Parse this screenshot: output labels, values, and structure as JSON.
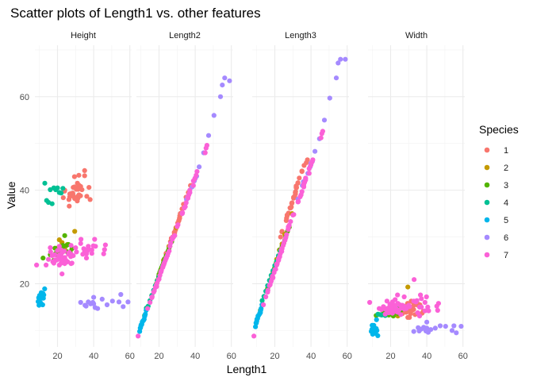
{
  "chart_data": {
    "type": "scatter",
    "title": "Scatter plots of Length1 vs. other features",
    "xlabel": "Length1",
    "ylabel": "Value",
    "panels": [
      "Height",
      "Length2",
      "Length3",
      "Width"
    ],
    "xlim": [
      7.5,
      61
    ],
    "ylim": [
      6.5,
      71
    ],
    "x_ticks": [
      20,
      40,
      60
    ],
    "y_ticks": [
      20,
      40,
      60
    ],
    "legend_title": "Species",
    "series": [
      {
        "name": "1",
        "color": "#F8766D",
        "length1": [
          23.2,
          24.0,
          23.9,
          26.3,
          26.5,
          26.8,
          26.8,
          27.6,
          27.6,
          28.5,
          28.4,
          28.7,
          29.1,
          29.5,
          29.4,
          29.4,
          30.4,
          30.4,
          30.9,
          31.0,
          31.3,
          31.4,
          31.5,
          31.8,
          31.9,
          31.8,
          32.0,
          32.7,
          32.8,
          33.5,
          35.0,
          35.0,
          36.2,
          37.4,
          38.0
        ],
        "height": [
          38.4,
          40.0,
          39.8,
          38.0,
          36.6,
          39.2,
          38.6,
          39.3,
          38.8,
          39.2,
          39.4,
          40.6,
          38.6,
          38.2,
          42.9,
          40.7,
          40.2,
          40.3,
          37.7,
          41.5,
          38.3,
          40.2,
          38.8,
          41.1,
          39.0,
          43.2,
          38.8,
          38.8,
          40.8,
          40.1,
          44.2,
          43.1,
          38.7,
          40.6,
          38.0
        ],
        "length2": [
          25.4,
          26.3,
          26.5,
          29.0,
          29.0,
          29.7,
          29.7,
          30.0,
          30.0,
          30.7,
          31.0,
          31.0,
          31.5,
          32.0,
          32.0,
          32.0,
          33.0,
          33.0,
          33.5,
          33.5,
          34.0,
          34.0,
          34.5,
          35.0,
          35.0,
          35.0,
          35.0,
          36.0,
          36.0,
          37.0,
          38.5,
          38.5,
          39.5,
          41.0,
          41.0
        ],
        "length3": [
          30.0,
          31.2,
          31.1,
          33.5,
          34.0,
          34.7,
          34.5,
          35.0,
          35.1,
          36.2,
          36.2,
          36.2,
          36.4,
          37.3,
          37.2,
          37.2,
          38.3,
          38.5,
          38.6,
          38.7,
          39.5,
          39.2,
          39.7,
          40.6,
          40.5,
          40.9,
          40.6,
          41.5,
          41.6,
          42.6,
          44.1,
          44.0,
          45.3,
          45.9,
          46.5
        ],
        "width": [
          14.4,
          15.1,
          14.8,
          14.4,
          13.6,
          14.8,
          14.4,
          15.2,
          14.3,
          13.9,
          14.3,
          14.9,
          14.3,
          12.8,
          15.8,
          14.7,
          12.8,
          14.3,
          14.2,
          13.6,
          14.5,
          16.3,
          15.0,
          14.7,
          14.3,
          16.2,
          15.0,
          14.5,
          15.4,
          13.4,
          15.7,
          15.4,
          15.5,
          13.7,
          14.1
        ]
      },
      {
        "name": "2",
        "color": "#C49A00",
        "length1": [
          20.0,
          20.8,
          21.0,
          22.5,
          24.0,
          25.5,
          29.5
        ],
        "height": [
          26.8,
          27.6,
          29.4,
          28.8,
          27.4,
          28.4,
          31.2
        ],
        "length2": [
          22.0,
          22.6,
          23.0,
          25.0,
          26.0,
          28.0,
          32.0
        ],
        "length3": [
          23.5,
          24.5,
          25.2,
          27.2,
          28.5,
          30.6,
          35.0
        ],
        "width": [
          14.2,
          14.0,
          14.1,
          14.3,
          13.1,
          14.2,
          19.3
        ]
      },
      {
        "name": "3",
        "color": "#53B400",
        "length1": [
          12.0,
          16.0,
          18.0,
          18.6,
          19.0,
          19.8,
          20.0,
          20.5,
          20.9,
          21.5,
          22.0,
          22.5,
          23.0,
          23.0,
          24.0,
          25.0,
          25.5,
          26.0,
          27.0,
          28.0
        ],
        "height": [
          25.5,
          26.2,
          25.0,
          27.6,
          26.5,
          27.6,
          26.1,
          26.0,
          25.9,
          27.0,
          26.8,
          25.5,
          27.5,
          28.2,
          30.3,
          28.2,
          26.8,
          28.4,
          26.8,
          27.5
        ],
        "length2": [
          13.2,
          17.5,
          19.5,
          20.0,
          20.7,
          21.5,
          22.0,
          22.5,
          23.0,
          23.5,
          24.0,
          24.5,
          25.0,
          25.3,
          26.0,
          27.0,
          27.5,
          28.0,
          29.0,
          30.0
        ],
        "length3": [
          14.3,
          19.0,
          21.0,
          21.4,
          22.5,
          23.2,
          23.5,
          24.0,
          24.5,
          25.0,
          25.8,
          26.0,
          26.9,
          27.3,
          28.0,
          28.7,
          29.3,
          30.0,
          31.2,
          32.1
        ],
        "width": [
          13.2,
          14.1,
          13.8,
          13.8,
          13.3,
          14.8,
          13.8,
          13.9,
          14.2,
          13.1,
          13.8,
          14.4,
          14.9,
          14.4,
          13.6,
          14.2,
          14.6,
          14.5,
          14.6,
          15.0
        ]
      },
      {
        "name": "4",
        "color": "#00C094",
        "length1": [
          13.0,
          14.0,
          15.0,
          16.0,
          17.0,
          18.0,
          19.0,
          20.0,
          21.0,
          22.0,
          23.0
        ],
        "height": [
          41.5,
          37.8,
          37.4,
          40.1,
          37.1,
          40.5,
          40.1,
          40.5,
          39.5,
          39.4,
          40.4
        ],
        "length2": [
          14.8,
          15.2,
          16.4,
          17.5,
          18.6,
          19.6,
          20.6,
          21.5,
          22.5,
          23.7,
          24.6
        ],
        "length3": [
          16.4,
          17.3,
          18.4,
          19.6,
          20.7,
          21.8,
          22.8,
          23.9,
          24.8,
          26.0,
          27.0
        ],
        "width": [
          13.5,
          13.4,
          13.3,
          14.7,
          13.2,
          14.6,
          14.3,
          14.9,
          13.8,
          14.7,
          15.2
        ]
      },
      {
        "name": "5",
        "color": "#00B6EB",
        "length1": [
          9.3,
          9.6,
          9.8,
          10.0,
          10.1,
          10.5,
          10.7,
          11.0,
          11.5,
          11.8,
          12.0,
          12.2,
          12.4,
          12.9
        ],
        "height": [
          16.2,
          17.0,
          15.4,
          16.8,
          17.5,
          16.8,
          15.9,
          18.1,
          16.9,
          15.5,
          17.9,
          16.9,
          17.6,
          18.9
        ],
        "length2": [
          9.8,
          10.5,
          10.6,
          11.0,
          11.2,
          11.3,
          11.8,
          12.0,
          12.2,
          12.4,
          13.0,
          13.2,
          13.5,
          14.3
        ],
        "length3": [
          10.8,
          11.6,
          11.6,
          12.0,
          12.4,
          12.6,
          13.1,
          13.2,
          13.5,
          13.8,
          13.8,
          14.3,
          14.7,
          15.5
        ],
        "width": [
          9.8,
          10.2,
          11.1,
          10.3,
          9.2,
          9.5,
          11.1,
          10.3,
          9.4,
          9.7,
          10.4,
          12.3,
          10.0,
          8.9
        ]
      },
      {
        "name": "6",
        "color": "#A58AFF",
        "length1": [
          32.8,
          35.2,
          35.8,
          37.0,
          38.3,
          39.5,
          40.0,
          40.0,
          40.8,
          42.2,
          44.7,
          47.4,
          50.4,
          54.0,
          55.0,
          56.3,
          59.0
        ],
        "height": [
          16.0,
          15.4,
          15.2,
          16.1,
          15.7,
          16.0,
          15.7,
          17.1,
          14.9,
          14.7,
          16.7,
          15.5,
          16.3,
          16.1,
          17.7,
          15.1,
          16.1
        ],
        "length2": [
          35.0,
          38.0,
          38.5,
          39.5,
          40.7,
          42.0,
          42.5,
          42.6,
          43.0,
          45.0,
          48.0,
          51.7,
          56.0,
          60.0,
          62.5,
          64.0,
          63.4
        ],
        "length3": [
          38.1,
          41.0,
          41.8,
          42.5,
          43.6,
          45.0,
          45.5,
          45.8,
          46.2,
          48.3,
          51.0,
          55.0,
          59.7,
          64.0,
          67.2,
          68.0,
          68.0
        ],
        "width": [
          9.8,
          10.6,
          9.9,
          10.3,
          10.7,
          9.9,
          10.5,
          11.8,
          9.6,
          10.2,
          10.5,
          11.0,
          10.9,
          10.0,
          11.0,
          9.5,
          10.9
        ]
      },
      {
        "name": "7",
        "color": "#FB61D7",
        "length1": [
          8.4,
          13.7,
          15.0,
          16.2,
          17.4,
          18.0,
          18.7,
          19.0,
          19.6,
          20.0,
          21.0,
          21.0,
          21.0,
          21.3,
          22.0,
          22.0,
          22.0,
          22.0,
          22.0,
          22.5,
          22.5,
          22.7,
          23.0,
          23.5,
          24.0,
          24.0,
          24.6,
          25.0,
          25.6,
          26.5,
          27.3,
          27.5,
          27.5,
          27.5,
          28.0,
          28.7,
          30.0,
          32.8,
          34.5,
          35.0,
          36.5,
          36.0,
          37.0,
          37.0,
          39.0,
          39.0,
          39.8,
          40.5,
          41.0,
          45.5,
          46.0,
          46.5,
          16.0,
          17.0,
          18.5,
          20.5,
          23.8,
          26.0,
          30.5,
          33.0,
          34.0,
          36.0
        ],
        "height": [
          24.0,
          24.0,
          25.2,
          26.8,
          24.7,
          24.4,
          25.1,
          25.0,
          25.1,
          27.1,
          26.1,
          28.0,
          24.0,
          25.6,
          25.0,
          24.4,
          27.2,
          26.3,
          25.6,
          22.1,
          25.0,
          25.4,
          26.8,
          25.1,
          24.3,
          25.6,
          25.0,
          24.7,
          24.7,
          26.7,
          25.8,
          28.2,
          26.3,
          24.3,
          24.4,
          26.0,
          27.7,
          28.6,
          27.5,
          26.9,
          27.0,
          26.4,
          28.0,
          27.6,
          27.2,
          26.5,
          28.1,
          29.5,
          28.0,
          26.4,
          27.3,
          28.3,
          27.7,
          26.0,
          26.2,
          25.5,
          27.0,
          26.3,
          26.8,
          29.5,
          26.3,
          25.5
        ],
        "length2": [
          8.8,
          14.7,
          16.0,
          17.2,
          18.5,
          19.2,
          19.4,
          20.2,
          20.8,
          21.0,
          22.5,
          22.5,
          22.5,
          22.8,
          23.5,
          23.5,
          23.5,
          23.5,
          23.5,
          24.0,
          24.0,
          24.2,
          24.5,
          25.0,
          25.5,
          25.5,
          26.0,
          26.5,
          27.0,
          28.7,
          29.5,
          29.8,
          29.9,
          29.7,
          30.0,
          30.3,
          32.2,
          35.0,
          36.5,
          37.3,
          39.0,
          38.5,
          39.5,
          40.0,
          41.0,
          42.0,
          42.5,
          43.2,
          44.0,
          48.0,
          49.0,
          49.6,
          17.0,
          18.2,
          19.7,
          21.8,
          25.4,
          28.0,
          32.6,
          35.2,
          36.2,
          38.3
        ],
        "length3": [
          8.8,
          15.5,
          17.2,
          18.6,
          19.8,
          20.5,
          21.6,
          21.3,
          22.4,
          23.0,
          24.0,
          24.0,
          24.2,
          24.3,
          25.0,
          25.0,
          25.1,
          25.2,
          25.3,
          25.7,
          25.7,
          25.8,
          26.4,
          27.2,
          27.5,
          27.6,
          28.2,
          28.7,
          29.3,
          30.5,
          31.6,
          31.9,
          32.1,
          32.2,
          32.5,
          33.3,
          34.7,
          37.5,
          39.0,
          39.7,
          41.7,
          41.2,
          42.2,
          42.6,
          43.6,
          44.6,
          45.3,
          46.0,
          46.5,
          51.2,
          52.1,
          52.6,
          18.2,
          19.6,
          21.1,
          23.1,
          26.9,
          29.8,
          34.8,
          37.6,
          38.6,
          40.7
        ],
        "width": [
          16.0,
          14.7,
          14.5,
          15.0,
          14.5,
          16.3,
          14.8,
          13.8,
          15.6,
          14.5,
          13.7,
          16.1,
          15.4,
          14.1,
          15.2,
          15.4,
          14.1,
          15.3,
          14.8,
          16.6,
          14.4,
          15.4,
          14.7,
          14.0,
          15.8,
          13.9,
          14.4,
          15.5,
          13.4,
          15.4,
          15.1,
          14.9,
          17.2,
          14.6,
          15.1,
          14.7,
          15.4,
          16.3,
          16.4,
          13.8,
          17.6,
          15.0,
          15.0,
          16.8,
          14.2,
          16.0,
          17.2,
          15.0,
          14.2,
          15.2,
          14.3,
          15.8,
          15.1,
          13.5,
          14.0,
          14.7,
          17.6,
          14.8,
          15.1,
          20.9,
          16.1,
          13.1
        ]
      }
    ]
  }
}
